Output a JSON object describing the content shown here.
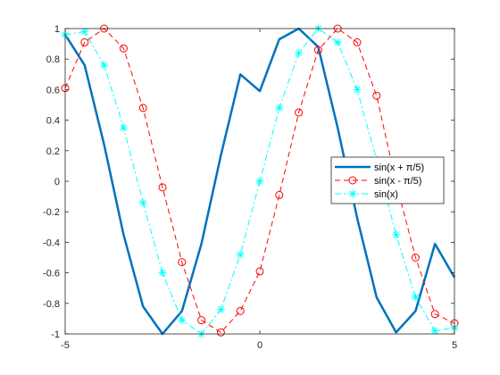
{
  "chart_data": {
    "type": "line",
    "title": "",
    "xlabel": "",
    "ylabel": "",
    "xlim": [
      -5,
      5
    ],
    "ylim": [
      -1,
      1
    ],
    "grid": false,
    "legend_position": "right",
    "x_ticks": [
      -5,
      0,
      5
    ],
    "x_tick_labels": [
      "-5",
      "0",
      "5"
    ],
    "y_ticks": [
      -1,
      -0.8,
      -0.6,
      -0.4,
      -0.2,
      0,
      0.2,
      0.4,
      0.6,
      0.8,
      1
    ],
    "y_tick_labels": [
      "-1",
      "-0.8",
      "-0.6",
      "-0.4",
      "-0.2",
      "0",
      "0.2",
      "0.4",
      "0.6",
      "0.8",
      "1"
    ],
    "series": [
      {
        "name": "sin(x + π/5)",
        "color": "#0072bd",
        "line_style": "solid",
        "line_width": "thick",
        "marker": "none",
        "x": [
          -5,
          -4.5,
          -4,
          -3.5,
          -3,
          -2.5,
          -2,
          -1.5,
          -1,
          -0.5,
          0,
          0.5,
          1,
          1.5,
          2,
          2.5,
          3,
          3.5,
          4,
          4.5,
          5
        ],
        "y": [
          0.96,
          0.76,
          0.24,
          -0.35,
          -0.82,
          -1.0,
          -0.85,
          -0.41,
          0.17,
          0.7,
          0.59,
          0.93,
          1.0,
          0.88,
          0.35,
          -0.24,
          -0.76,
          -0.99,
          -0.85,
          -0.41,
          -0.63
        ]
      },
      {
        "name": "sin(x - π/5)",
        "color": "#ff0000",
        "line_style": "dashed",
        "line_width": "thin",
        "marker": "circle",
        "x": [
          -5,
          -4.5,
          -4,
          -3.5,
          -3,
          -2.5,
          -2,
          -1.5,
          -1,
          -0.5,
          0,
          0.5,
          1,
          1.5,
          2,
          2.5,
          3,
          3.5,
          4,
          4.5,
          5
        ],
        "y": [
          0.61,
          0.91,
          1.0,
          0.87,
          0.48,
          -0.04,
          -0.53,
          -0.91,
          -0.99,
          -0.85,
          -0.59,
          -0.09,
          0.45,
          0.86,
          1.0,
          0.91,
          0.56,
          -0.01,
          -0.5,
          -0.87,
          -0.93
        ]
      },
      {
        "name": "sin(x)",
        "color": "#00ffff",
        "line_style": "dashdot",
        "line_width": "thin",
        "marker": "asterisk",
        "x": [
          -5,
          -4.5,
          -4,
          -3.5,
          -3,
          -2.5,
          -2,
          -1.5,
          -1,
          -0.5,
          0,
          0.5,
          1,
          1.5,
          2,
          2.5,
          3,
          3.5,
          4,
          4.5,
          5
        ],
        "y": [
          0.96,
          0.98,
          0.76,
          0.35,
          -0.14,
          -0.6,
          -0.91,
          -1.0,
          -0.84,
          -0.48,
          0,
          0.48,
          0.84,
          1.0,
          0.91,
          0.6,
          0.14,
          -0.35,
          -0.76,
          -0.98,
          -0.96
        ]
      }
    ]
  }
}
